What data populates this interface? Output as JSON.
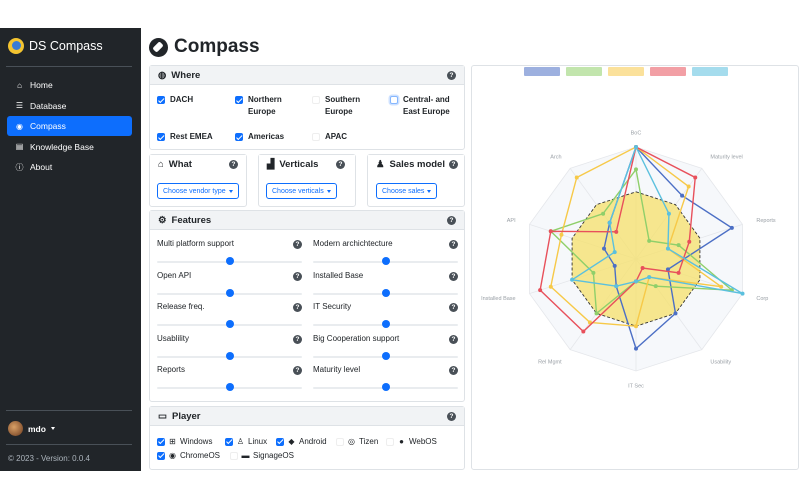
{
  "sidebar": {
    "brand": "DS Compass",
    "items": [
      {
        "label": "Home",
        "icon": "home-icon",
        "active": false
      },
      {
        "label": "Database",
        "icon": "database-icon",
        "active": false
      },
      {
        "label": "Compass",
        "icon": "compass-icon",
        "active": true
      },
      {
        "label": "Knowledge Base",
        "icon": "book-icon",
        "active": false
      },
      {
        "label": "About",
        "icon": "info-icon",
        "active": false
      }
    ],
    "user": "mdo",
    "footer": "© 2023 - Version: 0.0.4"
  },
  "page": {
    "title": "Compass"
  },
  "where": {
    "title": "Where",
    "regions": [
      {
        "label": "DACH",
        "checked": true
      },
      {
        "label": "Northern Europe",
        "checked": true
      },
      {
        "label": "Southern Europe",
        "checked": false
      },
      {
        "label": "Central- and East Europe",
        "checked": false
      },
      {
        "label": "Rest EMEA",
        "checked": true
      },
      {
        "label": "Americas",
        "checked": true
      },
      {
        "label": "APAC",
        "checked": false
      }
    ]
  },
  "what": {
    "title": "What",
    "dropdown": "Choose vendor type"
  },
  "verticals": {
    "title": "Verticals",
    "dropdown": "Choose verticals"
  },
  "sales": {
    "title": "Sales model",
    "dropdown": "Choose sales"
  },
  "features": {
    "title": "Features",
    "items": [
      {
        "label": "Multi platform support",
        "value": 0.5
      },
      {
        "label": "Modern archichtecture",
        "value": 0.5
      },
      {
        "label": "Open API",
        "value": 0.5
      },
      {
        "label": "Installed Base",
        "value": 0.5
      },
      {
        "label": "Release freq.",
        "value": 0.5
      },
      {
        "label": "IT Security",
        "value": 0.5
      },
      {
        "label": "Usablility",
        "value": 0.5
      },
      {
        "label": "Big Cooperation support",
        "value": 0.5
      },
      {
        "label": "Reports",
        "value": 0.5
      },
      {
        "label": "Maturity level",
        "value": 0.5
      }
    ]
  },
  "player": {
    "title": "Player",
    "items": [
      {
        "label": "Windows",
        "checked": true,
        "icon": "windows-icon"
      },
      {
        "label": "Linux",
        "checked": true,
        "icon": "linux-icon"
      },
      {
        "label": "Android",
        "checked": true,
        "icon": "android-icon"
      },
      {
        "label": "Tizen",
        "checked": false,
        "icon": "tizen-icon"
      },
      {
        "label": "WebOS",
        "checked": false,
        "icon": "webos-icon"
      },
      {
        "label": "ChromeOS",
        "checked": true,
        "icon": "chrome-icon"
      },
      {
        "label": "SignageOS",
        "checked": false,
        "icon": "signageos-icon"
      }
    ]
  },
  "colors": {
    "accent": "#0d6efd",
    "sidebar_bg": "#212529"
  },
  "chart_data": {
    "type": "radar",
    "axes": [
      "BoC",
      "Maturity level",
      "Reports",
      "Corp",
      "Usability",
      "IT Sec",
      "Rel Mgmt",
      "Installed Base",
      "API",
      "Arch"
    ],
    "range": [
      0,
      10
    ],
    "series": [
      {
        "color": "#4c6fc5",
        "values": [
          10,
          7,
          9,
          3,
          6,
          8,
          3,
          2,
          3,
          4
        ]
      },
      {
        "color": "#8fcf6a",
        "values": [
          8,
          2,
          4,
          9,
          3,
          2,
          6,
          4,
          8,
          5
        ]
      },
      {
        "color": "#f7c948",
        "values": [
          10,
          8,
          3,
          8,
          2,
          6,
          7,
          8,
          7,
          9
        ]
      },
      {
        "color": "#e8505b",
        "values": [
          10,
          9,
          5,
          4,
          1,
          2,
          8,
          9,
          8,
          3
        ]
      },
      {
        "color": "#5bc0de",
        "values": [
          10,
          5,
          3,
          10,
          2,
          2,
          3,
          6,
          2,
          4
        ]
      }
    ],
    "reference": {
      "color": "#f5e06a",
      "values": [
        6,
        6,
        6,
        6,
        6,
        6,
        6,
        6,
        6,
        6
      ]
    }
  }
}
